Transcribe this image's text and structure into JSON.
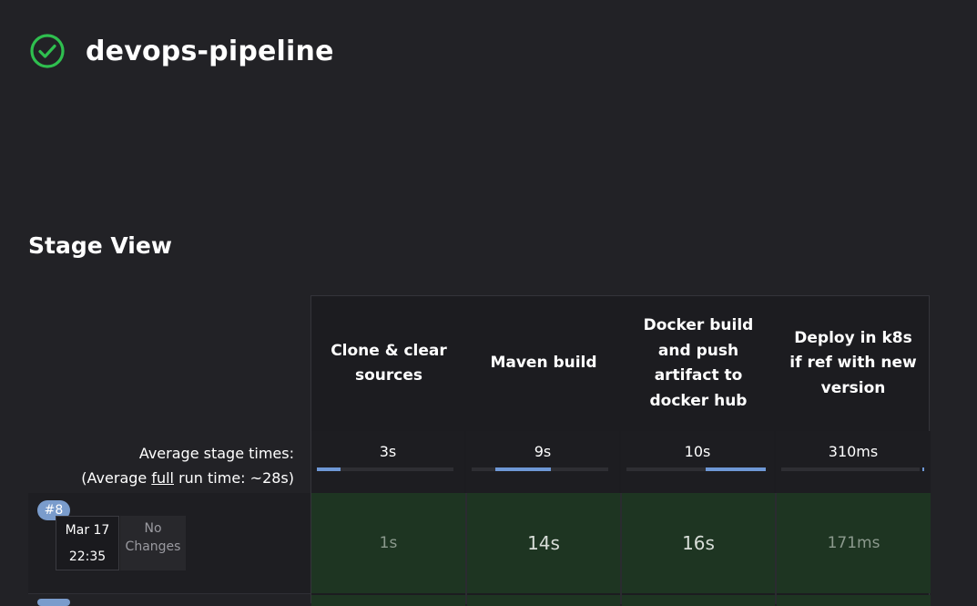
{
  "job": {
    "title": "devops-pipeline",
    "status_icon": "check-circle-icon",
    "status_color": "#2fbf4f"
  },
  "section": {
    "title": "Stage View"
  },
  "average": {
    "label_line1": "Average stage times:",
    "label_prefix": "(Average ",
    "label_link": "full",
    "label_suffix": " run time: ~28s)"
  },
  "stages": [
    {
      "name": "Clone & clear\nsources",
      "avg": "3s",
      "avg_fraction": 0.17
    },
    {
      "name": "Maven build",
      "avg": "9s",
      "avg_fraction": 0.41
    },
    {
      "name": "Docker build\nand push\nartifact to\ndocker hub",
      "avg": "10s",
      "avg_fraction": 0.44
    },
    {
      "name": "Deploy in k8s\nif ref with new\nversion",
      "avg": "310ms",
      "avg_fraction": 0.014
    }
  ],
  "runs": [
    {
      "badge": "#8",
      "date": "Mar 17",
      "time": "22:35",
      "changes": "No Changes",
      "durations": [
        "1s",
        "14s",
        "16s",
        "171ms"
      ]
    }
  ],
  "colors": {
    "success_cell": "#1e3522",
    "bar": "#6e98d6",
    "badge": "#7a9ccc"
  }
}
